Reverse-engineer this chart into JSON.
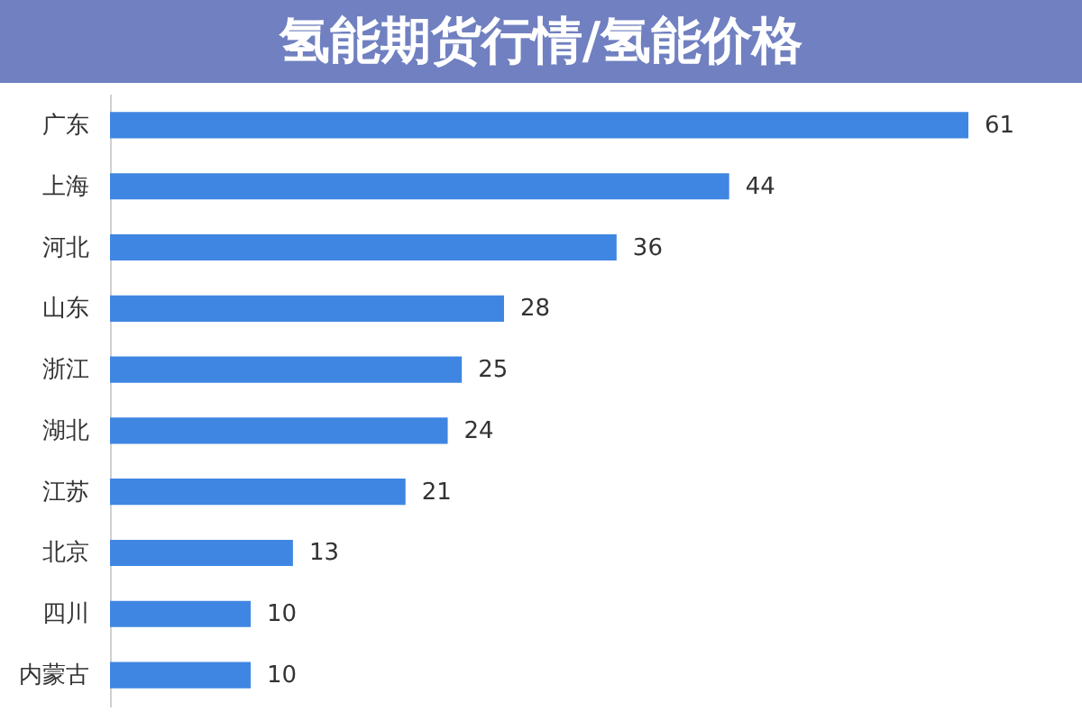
{
  "chart_data": {
    "type": "bar",
    "orientation": "horizontal",
    "title": "氢能期货行情/氢能价格",
    "categories": [
      "广东",
      "上海",
      "河北",
      "山东",
      "浙江",
      "湖北",
      "江苏",
      "北京",
      "四川",
      "内蒙古"
    ],
    "values": [
      61,
      44,
      36,
      28,
      25,
      24,
      21,
      13,
      10,
      10
    ],
    "color": "#3f86e2",
    "data_labels": true,
    "tick_labels": "y"
  }
}
